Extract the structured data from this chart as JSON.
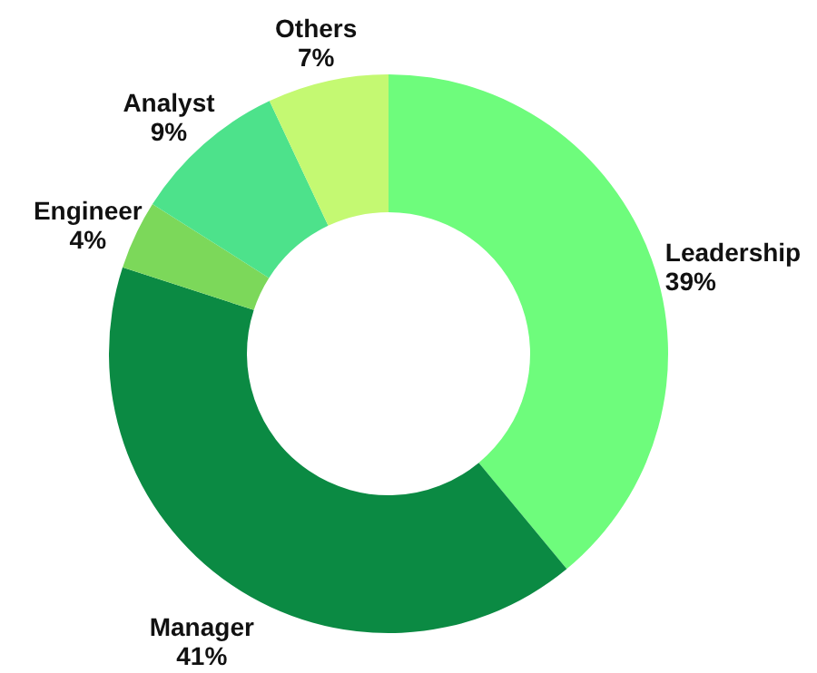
{
  "chart_data": {
    "type": "donut",
    "categories": [
      "Leadership",
      "Manager",
      "Engineer",
      "Analyst",
      "Others"
    ],
    "values": [
      39,
      41,
      4,
      9,
      7
    ],
    "value_labels": [
      "39%",
      "41%",
      "4%",
      "9%",
      "7%"
    ],
    "colors": [
      "#6efc7c",
      "#0b8a43",
      "#7cd85a",
      "#4de28b",
      "#c4f972"
    ]
  }
}
